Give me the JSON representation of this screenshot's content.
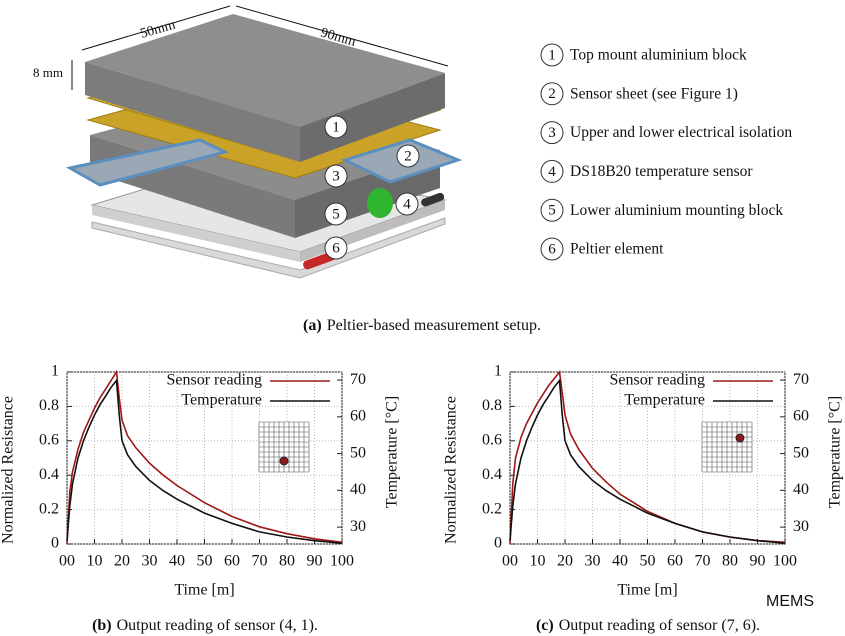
{
  "diagram": {
    "dimensions": {
      "width": "50mm",
      "length": "90mm",
      "height": "8 mm"
    },
    "items": [
      {
        "number": "1",
        "label": "Top mount aluminium block"
      },
      {
        "number": "2",
        "label": "Sensor sheet (see Figure 1)"
      },
      {
        "number": "3",
        "label": "Upper and lower electrical isolation"
      },
      {
        "number": "4",
        "label": "DS18B20 temperature sensor"
      },
      {
        "number": "5",
        "label": "Lower aluminium mounting block"
      },
      {
        "number": "6",
        "label": "Peltier element"
      }
    ]
  },
  "captions": [
    {
      "tag": "(a)",
      "text": "Peltier-based measurement setup."
    },
    {
      "tag": "(b)",
      "text": "Output reading of sensor (4, 1)."
    },
    {
      "tag": "(c)",
      "text": "Output reading of sensor (7, 6)."
    }
  ],
  "watermark": "MEMS",
  "chart_data": [
    {
      "type": "line",
      "x_label": "Time [m]",
      "y_label": "Normalized Resistance",
      "y2_label": "Temperature [°C]",
      "x": [
        0,
        1,
        2,
        4,
        6,
        8,
        10,
        12,
        14,
        16,
        18,
        19,
        20,
        22,
        25,
        30,
        35,
        40,
        50,
        60,
        70,
        80,
        90,
        100
      ],
      "series": [
        {
          "name": "Sensor reading",
          "color": "#a01818",
          "values": [
            0,
            0.3,
            0.42,
            0.55,
            0.65,
            0.72,
            0.79,
            0.85,
            0.9,
            0.95,
            1.0,
            0.85,
            0.72,
            0.63,
            0.56,
            0.47,
            0.4,
            0.34,
            0.24,
            0.16,
            0.1,
            0.06,
            0.03,
            0.01
          ]
        },
        {
          "name": "Temperature",
          "color": "#111111",
          "axis": "y2",
          "values": [
            26.3,
            35.7,
            41.8,
            48.8,
            53.5,
            57.2,
            60.5,
            63.3,
            65.6,
            68.0,
            69.9,
            60.5,
            53.5,
            49.7,
            46.5,
            42.7,
            39.9,
            37.6,
            33.8,
            31.0,
            28.7,
            27.3,
            26.3,
            25.6
          ]
        }
      ],
      "xlim": [
        0,
        100
      ],
      "xticks": [
        {
          "value": 0,
          "label": "00"
        },
        10,
        20,
        30,
        40,
        50,
        60,
        70,
        80,
        90,
        100
      ],
      "ylim": [
        0,
        1
      ],
      "yticks": [
        0,
        0.2,
        0.4,
        0.6,
        0.8,
        1
      ],
      "y2lim": [
        25.4,
        72.2
      ],
      "y2ticks": [
        30,
        40,
        50,
        60,
        70
      ],
      "grid": true,
      "legend": "top-right"
    },
    {
      "type": "line",
      "x_label": "Time [m]",
      "y_label": "Normalized Resistance",
      "y2_label": "Temperature [°C]",
      "x": [
        0,
        1,
        2,
        4,
        6,
        8,
        10,
        12,
        14,
        16,
        18,
        19,
        20,
        22,
        25,
        30,
        35,
        40,
        50,
        60,
        70,
        80,
        90,
        100
      ],
      "series": [
        {
          "name": "Sensor reading",
          "color": "#a01818",
          "values": [
            0,
            0.35,
            0.5,
            0.62,
            0.7,
            0.76,
            0.82,
            0.87,
            0.92,
            0.96,
            1.0,
            0.88,
            0.75,
            0.64,
            0.55,
            0.44,
            0.36,
            0.29,
            0.19,
            0.12,
            0.07,
            0.04,
            0.02,
            0.01
          ]
        },
        {
          "name": "Temperature",
          "color": "#111111",
          "axis": "y2",
          "values": [
            26.3,
            35.7,
            41.8,
            48.8,
            53.5,
            57.2,
            60.5,
            63.3,
            65.6,
            68.0,
            69.9,
            60.5,
            53.5,
            49.7,
            46.5,
            42.7,
            39.9,
            37.6,
            33.8,
            31.0,
            28.7,
            27.3,
            26.3,
            25.6
          ]
        }
      ],
      "xlim": [
        0,
        100
      ],
      "xticks": [
        {
          "value": 0,
          "label": "00"
        },
        10,
        20,
        30,
        40,
        50,
        60,
        70,
        80,
        90,
        100
      ],
      "ylim": [
        0,
        1
      ],
      "yticks": [
        0,
        0.2,
        0.4,
        0.6,
        0.8,
        1
      ],
      "y2lim": [
        25.4,
        72.2
      ],
      "y2ticks": [
        30,
        40,
        50,
        60,
        70
      ],
      "grid": true,
      "legend": "top-right"
    }
  ]
}
